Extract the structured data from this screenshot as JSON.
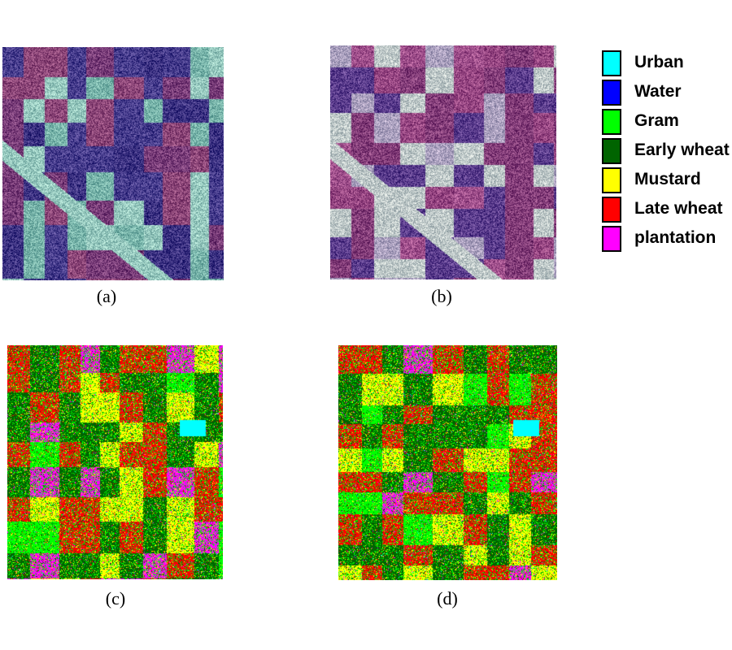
{
  "figure": {
    "panels": [
      {
        "id": "a",
        "caption": "(a)",
        "kind": "sar-composite"
      },
      {
        "id": "b",
        "caption": "(b)",
        "kind": "sar-composite"
      },
      {
        "id": "c",
        "caption": "(c)",
        "kind": "classification-map"
      },
      {
        "id": "d",
        "caption": "(d)",
        "kind": "classification-map"
      }
    ]
  },
  "legend": {
    "items": [
      {
        "label": "Urban",
        "color": "#00ffff"
      },
      {
        "label": "Water",
        "color": "#0000ff"
      },
      {
        "label": "Gram",
        "color": "#00ff00"
      },
      {
        "label": "Early wheat",
        "color": "#006400"
      },
      {
        "label": "Mustard",
        "color": "#ffff00"
      },
      {
        "label": "Late wheat",
        "color": "#ff0000"
      },
      {
        "label": "plantation",
        "color": "#ff00ff"
      }
    ]
  }
}
